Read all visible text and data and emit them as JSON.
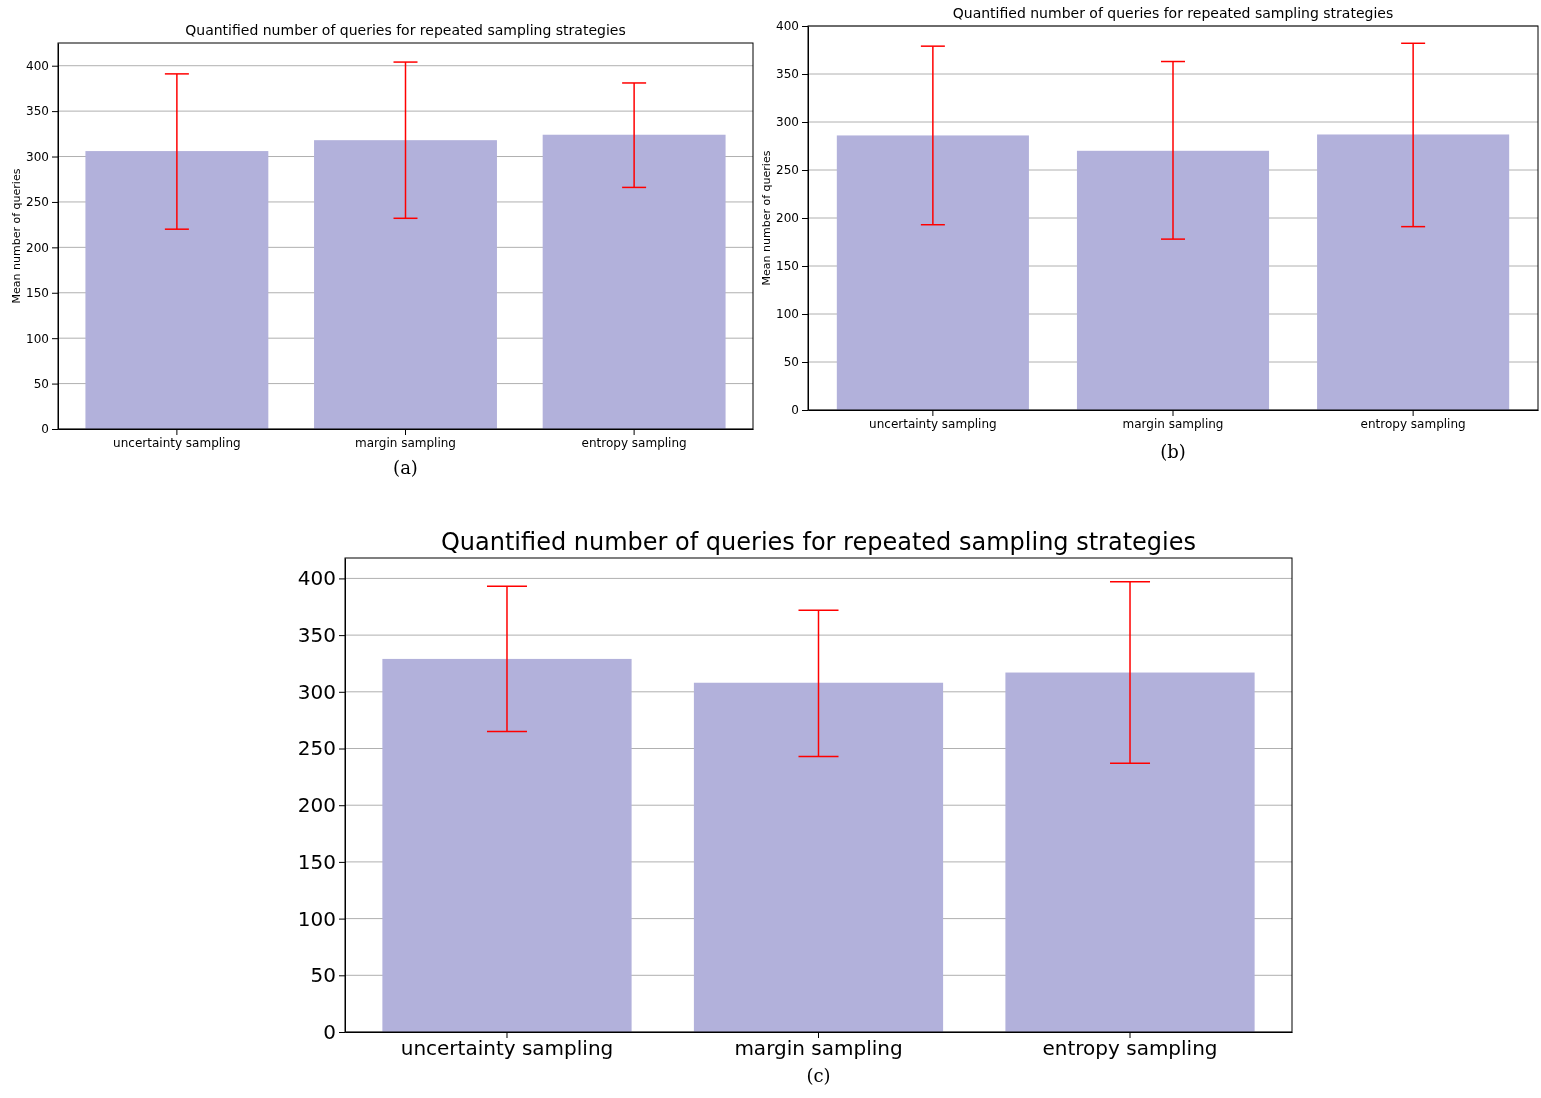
{
  "chart_data": [
    {
      "type": "bar",
      "title": "Quantified number of queries for repeated sampling strategies",
      "ylabel": "Mean number of queries",
      "categories": [
        "uncertainty sampling",
        "margin sampling",
        "entropy sampling"
      ],
      "series": [
        {
          "color": "#b2b1db",
          "values": [
            306,
            318,
            324
          ],
          "errors": [
            [
              220,
              391
            ],
            [
              232,
              404
            ],
            [
              266,
              381
            ]
          ]
        }
      ],
      "ylim": [
        0,
        425
      ],
      "yticks": [
        0,
        50,
        100,
        150,
        200,
        250,
        300,
        350,
        400
      ],
      "grid": "y",
      "annotations": [
        "(a)"
      ]
    },
    {
      "type": "bar",
      "title": "Quantified number of queries for repeated sampling strategies",
      "ylabel": "Mean number of queries",
      "categories": [
        "uncertainty sampling",
        "margin sampling",
        "entropy sampling"
      ],
      "series": [
        {
          "color": "#b2b1db",
          "values": [
            286,
            270,
            287
          ],
          "errors": [
            [
              193,
              379
            ],
            [
              178,
              363
            ],
            [
              191,
              382
            ]
          ]
        }
      ],
      "ylim": [
        0,
        400
      ],
      "yticks": [
        0,
        50,
        100,
        150,
        200,
        250,
        300,
        350,
        400
      ],
      "grid": "y",
      "annotations": [
        "(b)"
      ]
    },
    {
      "type": "bar",
      "title": "Quantified number of queries for repeated sampling strategies",
      "categories": [
        "uncertainty sampling",
        "margin sampling",
        "entropy sampling"
      ],
      "series": [
        {
          "color": "#b2b1db",
          "values": [
            329,
            308,
            317
          ],
          "errors": [
            [
              265,
              393
            ],
            [
              243,
              372
            ],
            [
              237,
              397
            ]
          ]
        }
      ],
      "ylim": [
        0,
        418
      ],
      "yticks": [
        0,
        50,
        100,
        150,
        200,
        250,
        300,
        350,
        400
      ],
      "grid": "y",
      "annotations": [
        "(c)"
      ]
    }
  ]
}
